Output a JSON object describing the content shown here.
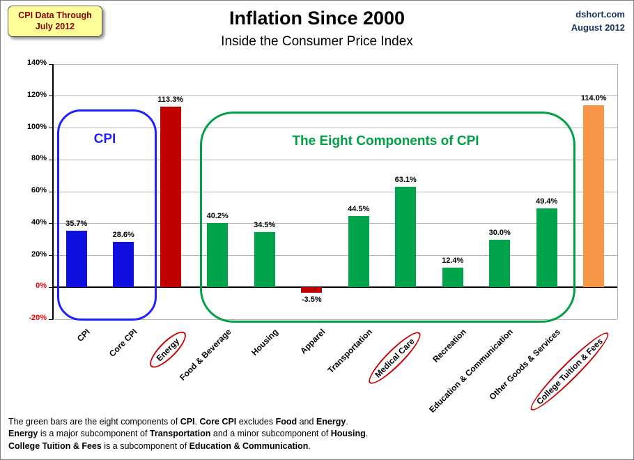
{
  "badge": {
    "line1": "CPI Data Through",
    "line2": "July 2012"
  },
  "header": {
    "title": "Inflation Since 2000",
    "subtitle": "Inside the Consumer Price Index"
  },
  "source": {
    "site": "dshort.com",
    "date": "August 2012"
  },
  "chart_data": {
    "type": "bar",
    "title": "Inflation Since 2000",
    "subtitle": "Inside the Consumer Price Index",
    "ylim": [
      -20,
      140
    ],
    "ytick_step": 20,
    "grid": true,
    "legend": "none",
    "categories": [
      "CPI",
      "Core CPI",
      "Energy",
      "Food & Beverage",
      "Housing",
      "Apparel",
      "Transportation",
      "Medical Care",
      "Recreation",
      "Education & Communication",
      "Other Goods & Services",
      "College Tuition & Fees"
    ],
    "values": [
      35.7,
      28.6,
      113.3,
      40.2,
      34.5,
      -3.5,
      44.5,
      63.1,
      12.4,
      30.0,
      49.4,
      114.0
    ],
    "value_labels": [
      "35.7%",
      "28.6%",
      "113.3%",
      "40.2%",
      "34.5%",
      "-3.5%",
      "44.5%",
      "63.1%",
      "12.4%",
      "30.0%",
      "49.4%",
      "114.0%"
    ],
    "bar_colors": [
      "#0f0fe0",
      "#0f0fe0",
      "#c00000",
      "#00a44a",
      "#00a44a",
      "#c00000",
      "#00a44a",
      "#00a44a",
      "#00a44a",
      "#00a44a",
      "#00a44a",
      "#f79646"
    ],
    "circled_categories": [
      "Energy",
      "Medical Care",
      "College Tuition & Fees"
    ],
    "axis_colors": {
      "positive_tick": "#000000",
      "nonpositive_tick": "#ff0000"
    }
  },
  "annotations": {
    "cpi_box_label": "CPI",
    "cpi_box_color": "#1f1fff",
    "components_box_label": "The Eight Components of CPI",
    "components_box_color": "#00a044",
    "ellipse_color": "#cc0000"
  },
  "footer": {
    "lines": [
      [
        {
          "t": "The green bars are the eight components of "
        },
        {
          "t": "CPI",
          "b": true
        },
        {
          "t": ". "
        },
        {
          "t": "Core CPI",
          "b": true
        },
        {
          "t": " excludes "
        },
        {
          "t": "Food",
          "b": true
        },
        {
          "t": " and "
        },
        {
          "t": "Energy",
          "b": true
        },
        {
          "t": "."
        }
      ],
      [
        {
          "t": "Energy",
          "b": true
        },
        {
          "t": " is a major subcomponent of "
        },
        {
          "t": "Transportation",
          "b": true
        },
        {
          "t": " and a minor subcomponent of "
        },
        {
          "t": "Housing",
          "b": true
        },
        {
          "t": "."
        }
      ],
      [
        {
          "t": "College Tuition & Fees",
          "b": true
        },
        {
          "t": " is a subcomponent of "
        },
        {
          "t": "Education & Communication",
          "b": true
        },
        {
          "t": "."
        }
      ]
    ]
  }
}
